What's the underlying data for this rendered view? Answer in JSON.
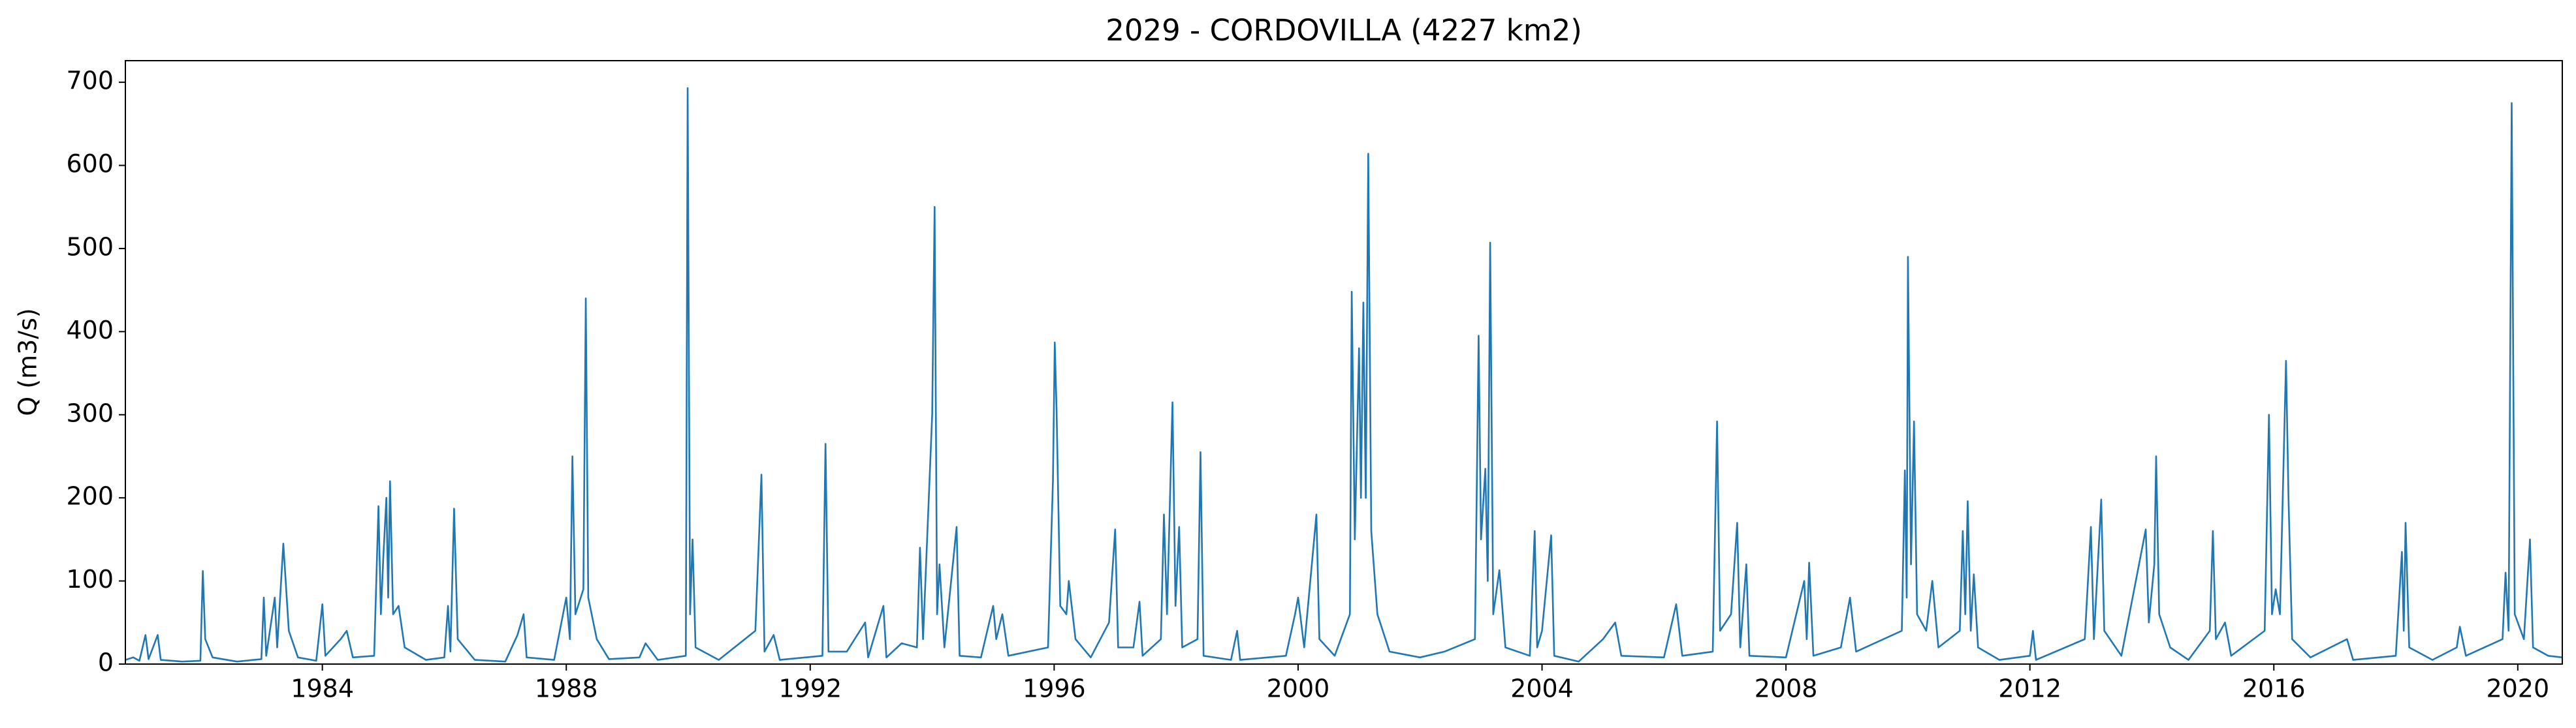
{
  "chart_data": {
    "type": "line",
    "title": "2029 - CORDOVILLA (4227 km2)",
    "y_label": "Q (m3/s)",
    "xlim": [
      1980.77,
      2020.73
    ],
    "xticks": [
      1984,
      1988,
      1992,
      1996,
      2000,
      2004,
      2008,
      2012,
      2016,
      2020
    ],
    "ylim": [
      0,
      726
    ],
    "yticks": [
      0,
      100,
      200,
      300,
      400,
      500,
      600,
      700
    ],
    "grid": false,
    "series": [
      {
        "color": "#1f77b4",
        "x": [
          1980.77,
          1980.9,
          1981.0,
          1981.1,
          1981.15,
          1981.3,
          1981.35,
          1981.7,
          1982.0,
          1982.04,
          1982.08,
          1982.2,
          1982.6,
          1983.0,
          1983.04,
          1983.08,
          1983.22,
          1983.26,
          1983.36,
          1983.45,
          1983.6,
          1983.9,
          1984.0,
          1984.05,
          1984.3,
          1984.4,
          1984.5,
          1984.85,
          1984.92,
          1984.96,
          1985.0,
          1985.05,
          1985.08,
          1985.11,
          1985.16,
          1985.25,
          1985.35,
          1985.7,
          1986.0,
          1986.06,
          1986.1,
          1986.16,
          1986.22,
          1986.5,
          1987.0,
          1987.2,
          1987.3,
          1987.35,
          1987.8,
          1988.0,
          1988.06,
          1988.1,
          1988.15,
          1988.28,
          1988.32,
          1988.36,
          1988.5,
          1988.7,
          1989.2,
          1989.3,
          1989.5,
          1989.96,
          1989.99,
          1990.03,
          1990.07,
          1990.12,
          1990.5,
          1991.1,
          1991.2,
          1991.25,
          1991.4,
          1991.5,
          1992.2,
          1992.25,
          1992.3,
          1992.6,
          1992.9,
          1992.95,
          1993.2,
          1993.25,
          1993.5,
          1993.75,
          1993.8,
          1993.85,
          1994.0,
          1994.04,
          1994.08,
          1994.12,
          1994.2,
          1994.4,
          1994.45,
          1994.8,
          1995.0,
          1995.05,
          1995.15,
          1995.25,
          1995.9,
          1995.98,
          1996.01,
          1996.04,
          1996.1,
          1996.2,
          1996.24,
          1996.35,
          1996.6,
          1996.9,
          1997.0,
          1997.05,
          1997.3,
          1997.4,
          1997.45,
          1997.75,
          1997.8,
          1997.85,
          1997.94,
          1997.99,
          1998.05,
          1998.1,
          1998.35,
          1998.4,
          1998.45,
          1998.9,
          1999.0,
          1999.05,
          1999.8,
          1999.95,
          2000.0,
          2000.1,
          2000.3,
          2000.35,
          2000.6,
          2000.85,
          2000.88,
          2000.93,
          2001.0,
          2001.03,
          2001.07,
          2001.11,
          2001.15,
          2001.2,
          2001.3,
          2001.5,
          2002.0,
          2002.4,
          2002.9,
          2002.96,
          2003.0,
          2003.07,
          2003.11,
          2003.15,
          2003.2,
          2003.3,
          2003.4,
          2003.8,
          2003.88,
          2003.92,
          2004.0,
          2004.15,
          2004.2,
          2004.6,
          2005.0,
          2005.2,
          2005.3,
          2006.0,
          2006.2,
          2006.3,
          2006.8,
          2006.87,
          2006.92,
          2007.1,
          2007.2,
          2007.25,
          2007.35,
          2007.4,
          2008.0,
          2008.3,
          2008.34,
          2008.38,
          2008.45,
          2008.9,
          2009.05,
          2009.15,
          2009.9,
          2009.95,
          2009.98,
          2010.0,
          2010.05,
          2010.1,
          2010.15,
          2010.3,
          2010.4,
          2010.5,
          2010.85,
          2010.9,
          2010.94,
          2010.98,
          2011.03,
          2011.08,
          2011.15,
          2011.5,
          2012.0,
          2012.05,
          2012.1,
          2012.9,
          2013.0,
          2013.05,
          2013.17,
          2013.22,
          2013.5,
          2013.9,
          2013.95,
          2014.04,
          2014.07,
          2014.12,
          2014.3,
          2014.6,
          2014.95,
          2015.0,
          2015.05,
          2015.2,
          2015.3,
          2015.85,
          2015.92,
          2015.97,
          2016.03,
          2016.1,
          2016.2,
          2016.24,
          2016.3,
          2016.6,
          2017.2,
          2017.3,
          2018.0,
          2018.1,
          2018.13,
          2018.16,
          2018.22,
          2018.6,
          2019.0,
          2019.05,
          2019.15,
          2019.75,
          2019.8,
          2019.85,
          2019.9,
          2019.95,
          2020.1,
          2020.2,
          2020.25,
          2020.5,
          2020.73
        ],
        "values": [
          5,
          8,
          4,
          35,
          6,
          35,
          5,
          3,
          4,
          112,
          30,
          8,
          3,
          6,
          80,
          10,
          80,
          20,
          145,
          40,
          8,
          4,
          72,
          10,
          30,
          40,
          8,
          10,
          190,
          60,
          130,
          200,
          80,
          220,
          60,
          70,
          20,
          5,
          8,
          70,
          15,
          187,
          30,
          5,
          3,
          35,
          60,
          8,
          5,
          80,
          30,
          250,
          60,
          90,
          440,
          80,
          30,
          6,
          8,
          25,
          5,
          10,
          693,
          60,
          150,
          20,
          5,
          40,
          228,
          15,
          35,
          5,
          10,
          265,
          15,
          15,
          50,
          8,
          70,
          8,
          25,
          20,
          140,
          30,
          300,
          550,
          60,
          120,
          20,
          165,
          10,
          8,
          70,
          30,
          60,
          10,
          20,
          220,
          387,
          305,
          70,
          60,
          100,
          30,
          8,
          50,
          162,
          20,
          20,
          75,
          10,
          30,
          180,
          60,
          315,
          70,
          165,
          20,
          30,
          255,
          10,
          5,
          40,
          5,
          10,
          60,
          80,
          20,
          180,
          30,
          10,
          60,
          448,
          150,
          380,
          200,
          435,
          200,
          614,
          160,
          60,
          15,
          8,
          15,
          30,
          395,
          150,
          235,
          100,
          507,
          60,
          113,
          20,
          10,
          160,
          20,
          40,
          155,
          10,
          3,
          30,
          50,
          10,
          8,
          72,
          10,
          15,
          292,
          40,
          60,
          170,
          20,
          120,
          10,
          8,
          100,
          30,
          122,
          10,
          20,
          80,
          15,
          40,
          233,
          80,
          490,
          120,
          292,
          60,
          40,
          100,
          20,
          40,
          160,
          60,
          196,
          40,
          108,
          20,
          5,
          10,
          40,
          5,
          30,
          165,
          30,
          198,
          40,
          10,
          162,
          50,
          120,
          250,
          60,
          20,
          5,
          40,
          160,
          30,
          50,
          10,
          40,
          300,
          60,
          90,
          60,
          365,
          200,
          30,
          8,
          30,
          5,
          10,
          135,
          40,
          170,
          20,
          5,
          20,
          45,
          10,
          30,
          110,
          40,
          675,
          60,
          30,
          150,
          20,
          10,
          8
        ]
      }
    ]
  }
}
